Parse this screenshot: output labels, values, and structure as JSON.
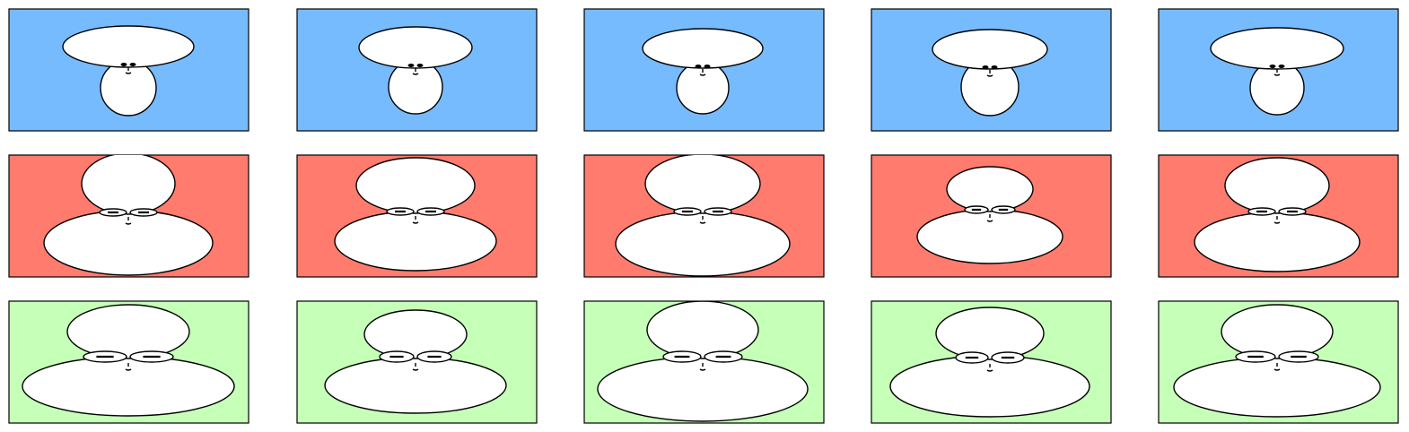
{
  "colors": {
    "row_1_background": "#77bbff",
    "row_2_background": "#ff7b6e",
    "row_3_background": "#c5ffb8",
    "outline": "#000000",
    "figure_fill": "#ffffff"
  },
  "icons": {
    "row_1": "mushroom-figure-icon",
    "row_2": "glasses-figure-icon",
    "row_3": "big-glasses-figure-icon"
  },
  "grid": {
    "rows": 3,
    "columns": 5
  }
}
